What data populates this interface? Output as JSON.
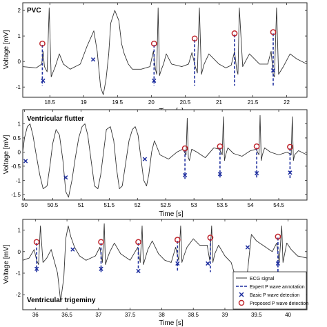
{
  "legend": {
    "entries": [
      "ECG signal",
      "Expert P wave annotation",
      "Basic P wave detection",
      "Proposed P wave detection"
    ]
  },
  "colors": {
    "ecg": "#333333",
    "expert": "#1f2f9f",
    "basic": "#1f2f9f",
    "proposed": "#c0262d",
    "axis": "#262626",
    "grid": "#e6e6e6"
  },
  "chart_data": [
    {
      "type": "line",
      "title": "PVC",
      "xlabel": "Time [s]",
      "ylabel": "Voltage [mV]",
      "xlim": [
        18.1,
        22.3
      ],
      "ylim": [
        -1.4,
        2.3
      ],
      "xticks": [
        18.5,
        19,
        19.5,
        20,
        20.5,
        21,
        21.5,
        22
      ],
      "xtick_labels": [
        "18.5",
        "19",
        "19.5",
        "20",
        "20.5",
        "21",
        "21.5",
        "22"
      ],
      "yticks": [
        -1,
        0,
        1,
        2
      ],
      "ytick_labels": [
        "-1",
        "0",
        "1",
        "2"
      ],
      "grid": false,
      "series": [
        {
          "name": "ECG signal",
          "x": [
            18.1,
            18.3,
            18.38,
            18.4,
            18.42,
            18.46,
            18.49,
            18.52,
            18.55,
            18.58,
            18.64,
            18.7,
            18.8,
            18.95,
            19.05,
            19.15,
            19.2,
            19.25,
            19.29,
            19.33,
            19.37,
            19.4,
            19.46,
            19.52,
            19.56,
            19.6,
            19.66,
            19.72,
            19.85,
            19.98,
            20.03,
            20.06,
            20.08,
            20.1,
            20.12,
            20.15,
            20.18,
            20.22,
            20.3,
            20.45,
            20.55,
            20.6,
            20.65,
            20.68,
            20.71,
            20.74,
            20.78,
            20.85,
            21.0,
            21.1,
            21.18,
            21.23,
            21.26,
            21.28,
            21.3,
            21.35,
            21.45,
            21.6,
            21.72,
            21.77,
            21.8,
            21.82,
            21.85,
            21.88,
            21.95,
            22.05,
            22.15,
            22.3
          ],
          "y": [
            -0.2,
            -0.25,
            -0.1,
            0.4,
            -0.2,
            -0.4,
            2.1,
            -0.6,
            -0.4,
            -0.2,
            0.3,
            -0.1,
            -0.3,
            -0.1,
            0.6,
            1.2,
            0.4,
            -1.0,
            -1.3,
            -0.7,
            0.3,
            1.5,
            2.0,
            1.6,
            0.7,
            0.3,
            -0.1,
            -0.3,
            -0.3,
            -0.2,
            0.4,
            -0.3,
            -0.5,
            2.1,
            -0.55,
            -0.3,
            -0.1,
            0.3,
            -0.1,
            -0.2,
            -0.1,
            0.35,
            -0.2,
            -0.45,
            2.1,
            -0.5,
            -0.1,
            0.3,
            -0.1,
            -0.25,
            -0.15,
            0.4,
            -0.3,
            -0.5,
            2.1,
            -0.2,
            0.3,
            -0.1,
            -0.1,
            0.4,
            -0.5,
            -0.6,
            2.1,
            -0.5,
            -0.2,
            0.3,
            0.1,
            -0.1
          ]
        },
        {
          "name": "Expert P wave annotation",
          "x": [
            18.39,
            20.04,
            20.64,
            21.23,
            21.8
          ]
        },
        {
          "name": "Basic P wave detection",
          "x": [
            18.4,
            19.14,
            20.04,
            21.8
          ],
          "y": [
            -0.75,
            0.08,
            -0.75,
            -0.35
          ]
        },
        {
          "name": "Proposed P wave detection",
          "x": [
            18.39,
            20.04,
            20.64,
            21.23,
            21.8
          ],
          "y": [
            0.7,
            0.7,
            0.9,
            1.1,
            1.15
          ]
        }
      ]
    },
    {
      "type": "line",
      "title": "Ventricular flutter",
      "xlabel": "Time [s]",
      "ylabel": "Voltage [mV]",
      "xlim": [
        49.97,
        55.0
      ],
      "ylim": [
        -1.7,
        1.5
      ],
      "xticks": [
        50,
        50.5,
        51,
        51.5,
        52,
        52.5,
        53,
        53.5,
        54,
        54.5
      ],
      "xtick_labels": [
        "50",
        "50.5",
        "51",
        "51.5",
        "52",
        "52.5",
        "53",
        "53.5",
        "54",
        "54.5"
      ],
      "yticks": [
        -1.5,
        -1,
        -0.5,
        0,
        0.5,
        1
      ],
      "ytick_labels": [
        "-1.5",
        "-1",
        "-0.5",
        "0",
        "0.5",
        "1"
      ],
      "grid": false,
      "series": [
        {
          "name": "ECG signal",
          "x": [
            49.97,
            50.0,
            50.05,
            50.1,
            50.15,
            50.2,
            50.27,
            50.33,
            50.4,
            50.45,
            50.5,
            50.56,
            50.62,
            50.68,
            50.73,
            50.78,
            50.84,
            50.9,
            50.96,
            51.02,
            51.07,
            51.12,
            51.18,
            51.24,
            51.3,
            51.35,
            51.4,
            51.45,
            51.52,
            51.58,
            51.63,
            51.68,
            51.73,
            51.79,
            51.85,
            51.91,
            51.96,
            52.01,
            52.06,
            52.11,
            52.16,
            52.2,
            52.25,
            52.3,
            52.4,
            52.55,
            52.7,
            52.8,
            52.86,
            52.88,
            52.9,
            52.92,
            52.96,
            53.05,
            53.2,
            53.35,
            53.45,
            53.5,
            53.52,
            53.54,
            53.56,
            53.6,
            53.7,
            53.85,
            54.0,
            54.1,
            54.15,
            54.17,
            54.19,
            54.21,
            54.25,
            54.35,
            54.5,
            54.65,
            54.72,
            54.74,
            54.76,
            54.78,
            54.85,
            55.0
          ],
          "y": [
            0.0,
            0.5,
            0.9,
            1.0,
            0.6,
            0.0,
            -0.8,
            -1.3,
            -1.2,
            -0.5,
            0.3,
            0.8,
            0.6,
            -0.3,
            -1.4,
            -1.6,
            -1.0,
            -0.2,
            0.5,
            0.9,
            1.0,
            0.6,
            -0.3,
            -1.2,
            -1.3,
            -0.8,
            0.0,
            0.8,
            0.9,
            0.4,
            -0.6,
            -1.3,
            -1.2,
            -0.4,
            0.4,
            0.8,
            0.9,
            0.6,
            -0.2,
            -1.0,
            -1.2,
            -0.8,
            0.0,
            0.4,
            -0.1,
            -0.25,
            0.0,
            0.1,
            -0.1,
            1.2,
            -0.2,
            -0.3,
            0.1,
            0.0,
            -0.2,
            0.15,
            0.1,
            -0.1,
            1.25,
            -0.3,
            -0.1,
            0.15,
            -0.05,
            -0.15,
            0.05,
            0.1,
            -0.1,
            1.3,
            -0.3,
            -0.1,
            0.15,
            0.0,
            -0.1,
            0.0,
            -0.1,
            1.25,
            -0.3,
            -0.1,
            0.05,
            -0.1
          ]
        },
        {
          "name": "Expert P wave annotation",
          "x": [
            52.84,
            53.46,
            54.11,
            54.7
          ]
        },
        {
          "name": "Basic P wave detection",
          "x": [
            50.02,
            50.73,
            52.13,
            52.84,
            53.46,
            54.11,
            54.7
          ],
          "y": [
            -0.32,
            -0.9,
            -0.25,
            -0.82,
            -0.78,
            -0.75,
            -0.73
          ]
        },
        {
          "name": "Proposed P wave detection",
          "x": [
            52.84,
            53.46,
            54.11,
            54.7
          ],
          "y": [
            0.13,
            0.2,
            0.2,
            0.18
          ]
        }
      ]
    },
    {
      "type": "line",
      "title": "Ventricular trigeminy",
      "xlabel": "Time [s]",
      "ylabel": "Voltage [mV]",
      "xlim": [
        35.8,
        40.3
      ],
      "ylim": [
        -2.7,
        1.5
      ],
      "xticks": [
        36,
        36.5,
        37,
        37.5,
        38,
        38.5,
        39,
        39.5,
        40
      ],
      "xtick_labels": [
        "36",
        "36.5",
        "37",
        "37.5",
        "38",
        "38.5",
        "39",
        "39.5",
        "40"
      ],
      "yticks": [
        -2,
        -1,
        0,
        1
      ],
      "ytick_labels": [
        "-2",
        "-1",
        "0",
        "1"
      ],
      "grid": false,
      "series": [
        {
          "name": "ECG signal",
          "x": [
            35.8,
            35.9,
            35.98,
            36.02,
            36.05,
            36.08,
            36.12,
            36.18,
            36.25,
            36.35,
            36.4,
            36.45,
            36.48,
            36.52,
            36.56,
            36.62,
            36.7,
            36.8,
            36.95,
            37.02,
            37.06,
            37.09,
            37.11,
            37.14,
            37.18,
            37.25,
            37.35,
            37.5,
            37.62,
            37.66,
            37.69,
            37.71,
            37.74,
            37.78,
            37.85,
            37.95,
            38.05,
            38.15,
            38.22,
            38.27,
            38.3,
            38.32,
            38.35,
            38.4,
            38.5,
            38.6,
            38.72,
            38.76,
            38.79,
            38.81,
            38.84,
            38.9,
            39.0,
            39.1,
            39.2,
            39.3,
            39.42,
            39.5,
            39.6,
            39.75,
            39.82,
            39.86,
            39.9,
            39.92,
            39.94,
            39.98,
            40.05,
            40.15,
            40.3
          ],
          "y": [
            -0.4,
            -0.3,
            0.1,
            -0.4,
            -0.6,
            1.2,
            -0.5,
            -0.3,
            0.1,
            -1.0,
            -2.3,
            -1.2,
            0.6,
            1.2,
            0.7,
            0.2,
            -0.2,
            -0.4,
            -0.2,
            0.2,
            -0.5,
            1.3,
            -0.6,
            -0.3,
            0.0,
            0.4,
            -0.1,
            -0.4,
            0.2,
            -0.5,
            1.2,
            -0.6,
            -0.3,
            0.1,
            0.5,
            -0.1,
            -0.4,
            -0.5,
            0.2,
            -0.4,
            1.2,
            -0.5,
            -0.2,
            0.2,
            0.6,
            0.3,
            0.3,
            -0.4,
            1.2,
            -0.5,
            -0.1,
            0.3,
            -0.2,
            -0.5,
            -1.5,
            -2.6,
            0.8,
            0.5,
            0.3,
            0.0,
            0.4,
            -0.5,
            1.2,
            -0.5,
            -0.2,
            0.4,
            0.1,
            -0.2,
            -0.3
          ]
        },
        {
          "name": "Expert P wave annotation",
          "x": [
            36.02,
            37.04,
            37.63,
            38.25,
            38.77,
            39.84
          ]
        },
        {
          "name": "Basic P wave detection",
          "x": [
            36.02,
            36.59,
            37.04,
            37.63,
            38.25,
            38.73,
            39.36,
            39.84
          ],
          "y": [
            -0.8,
            0.1,
            -0.8,
            -0.9,
            -0.55,
            -0.55,
            0.2,
            -0.55
          ]
        },
        {
          "name": "Proposed P wave detection",
          "x": [
            36.02,
            37.04,
            37.63,
            38.25,
            38.77,
            39.84
          ],
          "y": [
            0.45,
            0.45,
            0.45,
            0.55,
            0.65,
            0.7
          ]
        }
      ]
    }
  ]
}
